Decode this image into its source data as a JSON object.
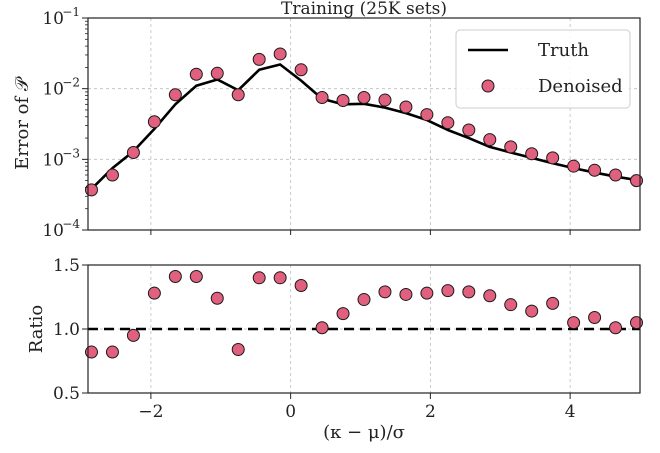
{
  "chart_data": [
    {
      "type": "line+scatter",
      "title": "Training (25K sets)",
      "ylabel": "Error of 𝒫",
      "xlabel": "",
      "yscale": "log",
      "ylim": [
        0.0001,
        0.1
      ],
      "xlim": [
        -2.9,
        5.0
      ],
      "yticks": [
        {
          "value": 0.1,
          "base": "10",
          "exp": "−1"
        },
        {
          "value": 0.01,
          "base": "10",
          "exp": "−2"
        },
        {
          "value": 0.001,
          "base": "10",
          "exp": "−3"
        },
        {
          "value": 0.0001,
          "base": "10",
          "exp": "−4"
        }
      ],
      "grid": true,
      "legend_position": "top-right",
      "series": [
        {
          "name": "Truth",
          "kind": "line",
          "color": "#000000",
          "x": [
            -2.9,
            -2.55,
            -2.25,
            -1.95,
            -1.65,
            -1.35,
            -1.05,
            -0.75,
            -0.45,
            -0.15,
            0.15,
            0.45,
            0.75,
            1.05,
            1.35,
            1.65,
            1.95,
            2.25,
            2.55,
            2.85,
            3.15,
            3.45,
            3.75,
            4.05,
            4.35,
            4.65,
            4.95
          ],
          "y": [
            0.00034,
            0.00075,
            0.0013,
            0.0027,
            0.006,
            0.011,
            0.0135,
            0.0095,
            0.0185,
            0.022,
            0.013,
            0.0072,
            0.006,
            0.0061,
            0.0054,
            0.0045,
            0.0036,
            0.0026,
            0.002,
            0.0015,
            0.00125,
            0.00105,
            0.00088,
            0.00075,
            0.00065,
            0.00057,
            0.00051
          ]
        },
        {
          "name": "Denoised",
          "kind": "scatter",
          "color": "#e0607e",
          "edgecolor": "#1a1a1a",
          "x": [
            -2.85,
            -2.55,
            -2.25,
            -1.95,
            -1.65,
            -1.35,
            -1.05,
            -0.75,
            -0.45,
            -0.15,
            0.15,
            0.45,
            0.75,
            1.05,
            1.35,
            1.65,
            1.95,
            2.25,
            2.55,
            2.85,
            3.15,
            3.45,
            3.75,
            4.05,
            4.35,
            4.65,
            4.95
          ],
          "y": [
            0.00037,
            0.0006,
            0.00125,
            0.0034,
            0.0082,
            0.016,
            0.0165,
            0.0082,
            0.026,
            0.031,
            0.0185,
            0.0075,
            0.0068,
            0.0075,
            0.0069,
            0.0055,
            0.0043,
            0.0033,
            0.0026,
            0.0019,
            0.0015,
            0.0012,
            0.00105,
            0.0008,
            0.0007,
            0.0006,
            0.0005
          ]
        }
      ]
    },
    {
      "type": "scatter",
      "title": "",
      "ylabel": "Ratio",
      "xlabel": "(κ − μ)/σ",
      "ylim": [
        0.5,
        1.5
      ],
      "xlim": [
        -2.9,
        5.0
      ],
      "yticks": [
        "0.5",
        "1.0",
        "1.5"
      ],
      "xticks": [
        "−2",
        "0",
        "2",
        "4"
      ],
      "grid": true,
      "reference_line": {
        "y": 1.0,
        "style": "dashed",
        "color": "#000000"
      },
      "series": [
        {
          "name": "",
          "kind": "scatter",
          "color": "#e0607e",
          "edgecolor": "#1a1a1a",
          "x": [
            -2.85,
            -2.55,
            -2.25,
            -1.95,
            -1.65,
            -1.35,
            -1.05,
            -0.75,
            -0.45,
            -0.15,
            0.15,
            0.45,
            0.75,
            1.05,
            1.35,
            1.65,
            1.95,
            2.25,
            2.55,
            2.85,
            3.15,
            3.45,
            3.75,
            4.05,
            4.35,
            4.65,
            4.95
          ],
          "y": [
            0.82,
            0.82,
            0.95,
            1.28,
            1.41,
            1.41,
            1.24,
            0.84,
            1.4,
            1.4,
            1.34,
            1.01,
            1.12,
            1.23,
            1.29,
            1.27,
            1.28,
            1.3,
            1.29,
            1.26,
            1.19,
            1.14,
            1.2,
            1.05,
            1.09,
            1.01,
            1.05
          ]
        }
      ]
    }
  ]
}
